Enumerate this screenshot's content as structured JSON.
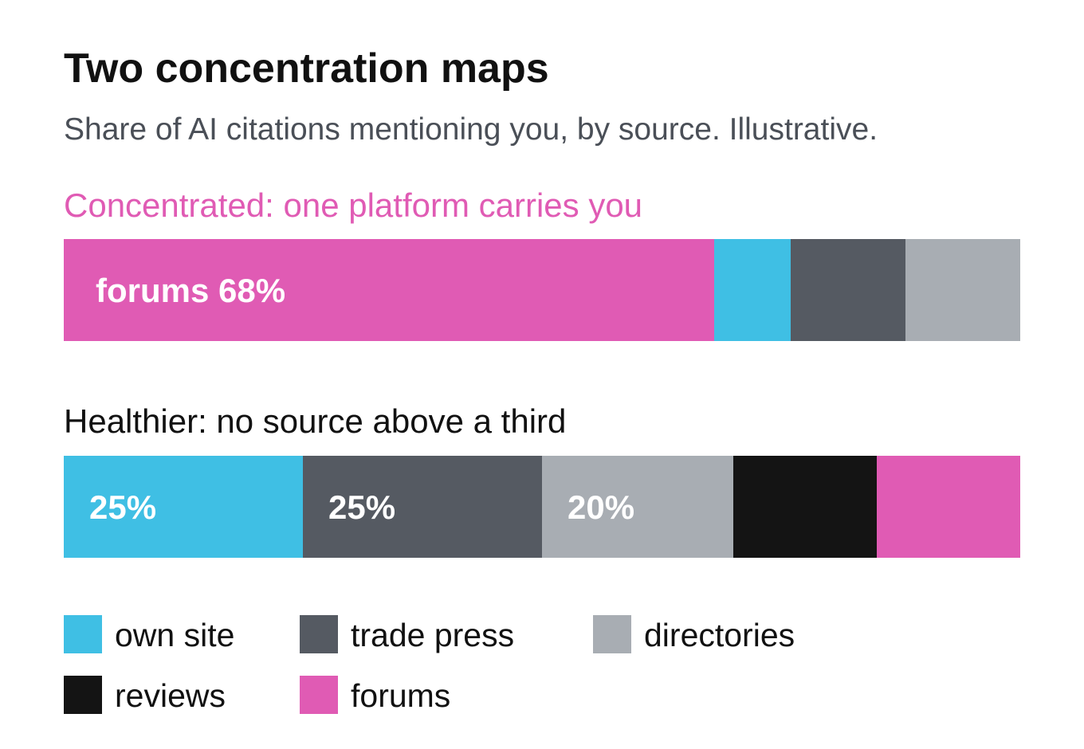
{
  "title": "Two concentration maps",
  "subtitle": "Share of AI citations mentioning you, by source. Illustrative.",
  "chart_data": [
    {
      "type": "bar",
      "stacked": true,
      "orientation": "horizontal",
      "title": "Concentrated: one platform carries you",
      "title_color": "#e05bb4",
      "categories": [
        "forums",
        "own site",
        "trade press",
        "directories"
      ],
      "colors": [
        "#e05bb4",
        "#3fbfe4",
        "#555a62",
        "#a8adb3"
      ],
      "values": [
        68,
        8,
        12,
        12
      ],
      "value_labels": [
        "forums 68%",
        null,
        null,
        null
      ],
      "xlim": [
        0,
        100
      ]
    },
    {
      "type": "bar",
      "stacked": true,
      "orientation": "horizontal",
      "title": "Healthier: no source above a third",
      "title_color": "#111111",
      "categories": [
        "own site",
        "trade press",
        "directories",
        "reviews",
        "forums"
      ],
      "colors": [
        "#3fbfe4",
        "#555a62",
        "#a8adb3",
        "#141414",
        "#e05bb4"
      ],
      "values": [
        25,
        25,
        20,
        15,
        15
      ],
      "value_labels": [
        "25%",
        "25%",
        "20%",
        null,
        null
      ],
      "xlim": [
        0,
        100
      ],
      "legend": true
    }
  ]
}
